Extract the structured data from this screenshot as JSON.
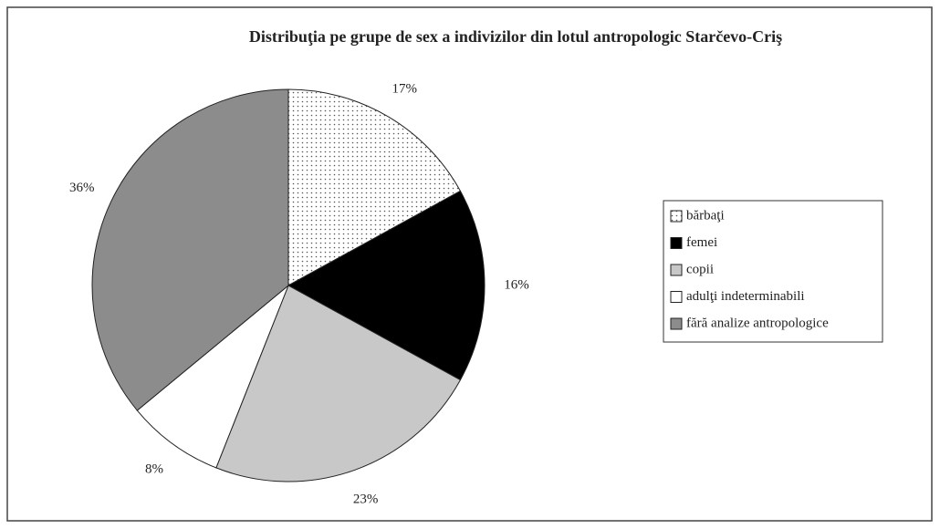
{
  "chart_data": {
    "type": "pie",
    "title": "Distribuţia pe grupe de sex a indivizilor din lotul antropologic Starčevo-Criş",
    "categories": [
      "bărbaţi",
      "femei",
      "copii",
      "adulţi indeterminabili",
      "fără analize antropologice"
    ],
    "values": [
      17,
      16,
      23,
      8,
      36
    ],
    "value_labels": [
      "17%",
      "16%",
      "23%",
      "8%",
      "36%"
    ],
    "colors": [
      "#ffffff",
      "#000000",
      "#c8c8c8",
      "#ffffff",
      "#8c8c8c"
    ],
    "patterns": [
      "dots",
      "solid",
      "solid",
      "solid",
      "solid"
    ],
    "legend": "right"
  }
}
